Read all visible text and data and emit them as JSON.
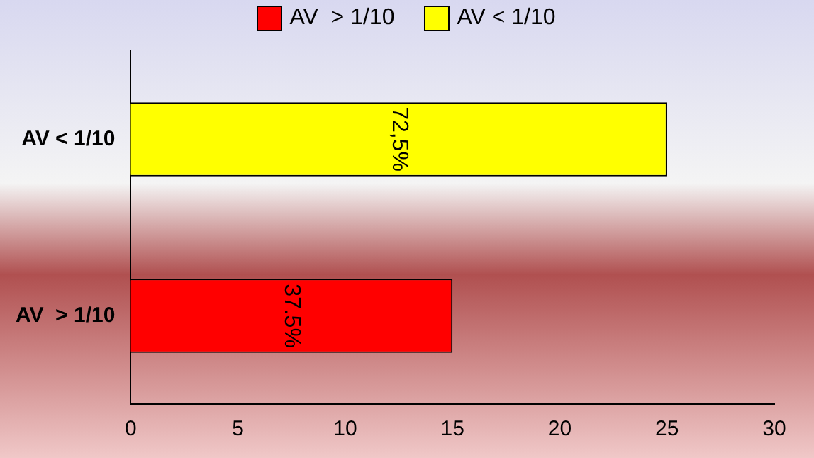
{
  "chart_data": {
    "type": "bar",
    "orientation": "horizontal",
    "categories": [
      "AV < 1/10",
      "AV  > 1/10"
    ],
    "series": [
      {
        "name": "AV  > 1/10",
        "color": "#ff0000",
        "values": [
          null,
          15
        ]
      },
      {
        "name": "AV < 1/10",
        "color": "#ffff00",
        "values": [
          25,
          null
        ]
      }
    ],
    "annotations": [
      "72,5%",
      "37.5%"
    ],
    "xlim": [
      0,
      30
    ],
    "xticks": [
      0,
      5,
      10,
      15,
      20,
      25,
      30
    ],
    "grid": false,
    "legend": "top"
  }
}
